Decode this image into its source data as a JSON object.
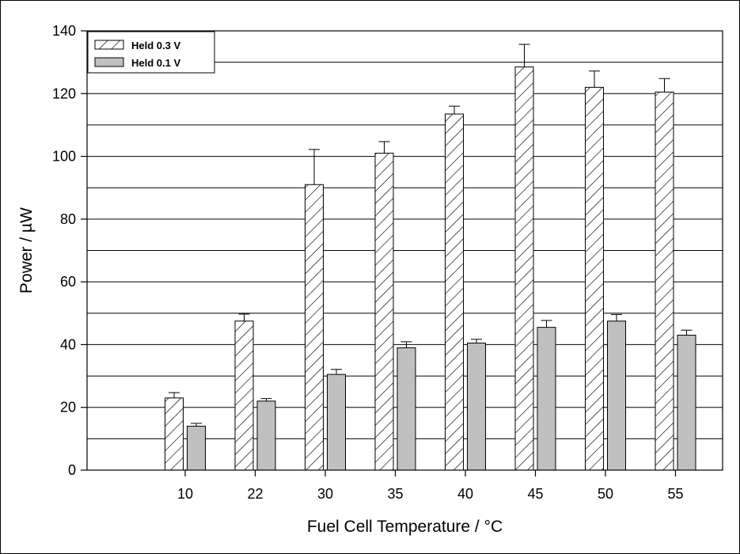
{
  "chart_data": {
    "type": "bar",
    "xlabel": "Fuel Cell Temperature / °C",
    "ylabel": "Power / µW",
    "ylim": [
      0,
      140
    ],
    "yticks": [
      0,
      20,
      40,
      60,
      80,
      100,
      120,
      140
    ],
    "grid": "horizontal every 10",
    "legend_position": "top-left",
    "categories": [
      "10",
      "22",
      "30",
      "35",
      "40",
      "45",
      "50",
      "55"
    ],
    "series": [
      {
        "name": "Held 0.3 V",
        "style": "hatched",
        "color": "#ffffff",
        "values": [
          23,
          47.5,
          91,
          101,
          113.5,
          128.5,
          122,
          120.5
        ],
        "errors": [
          1.7,
          2.2,
          11.2,
          3.7,
          2.5,
          7.2,
          5.2,
          4.3
        ]
      },
      {
        "name": "Held 0.1 V",
        "style": "solid",
        "color": "#c0c0c0",
        "values": [
          14,
          22,
          30.5,
          39,
          40.5,
          45.5,
          47.5,
          43
        ],
        "errors": [
          0.9,
          0.8,
          1.6,
          1.9,
          1.2,
          2.2,
          2.1,
          1.6
        ]
      }
    ]
  }
}
